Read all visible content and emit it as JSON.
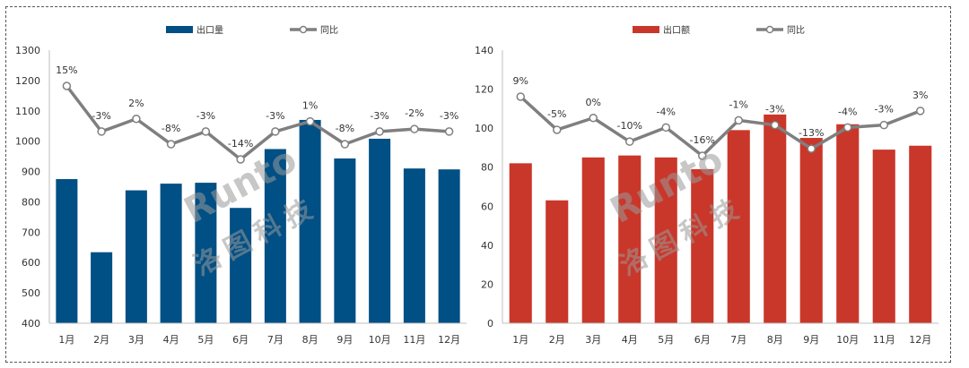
{
  "chart_data": [
    {
      "type": "bar",
      "categories": [
        "1月",
        "2月",
        "3月",
        "4月",
        "5月",
        "6月",
        "7月",
        "8月",
        "9月",
        "10月",
        "11月",
        "12月"
      ],
      "series": [
        {
          "name": "出口量",
          "type": "bar",
          "color": "#004f85",
          "values": [
            875,
            634,
            838,
            860,
            863,
            780,
            974,
            1070,
            943,
            1008,
            910,
            907
          ]
        }
      ],
      "line_series": {
        "name": "同比",
        "color": "#7f7f7f",
        "values": [
          15,
          -3,
          2,
          -8,
          -3,
          -14,
          -3,
          1,
          -8,
          -3,
          -2,
          -3
        ],
        "labels": [
          "15%",
          "-3%",
          "2%",
          "-8%",
          "-3%",
          "-14%",
          "-3%",
          "1%",
          "-8%",
          "-3%",
          "-2%",
          "-3%"
        ]
      },
      "ylim": [
        400,
        1300
      ],
      "yticks": [
        "400",
        "500",
        "600",
        "700",
        "800",
        "900",
        "1000",
        "1100",
        "1200",
        "1300"
      ],
      "legend": "top-center"
    },
    {
      "type": "bar",
      "categories": [
        "1月",
        "2月",
        "3月",
        "4月",
        "5月",
        "6月",
        "7月",
        "8月",
        "9月",
        "10月",
        "11月",
        "12月"
      ],
      "series": [
        {
          "name": "出口额",
          "type": "bar",
          "color": "#c9372a",
          "values": [
            82,
            63,
            85,
            86,
            85,
            79,
            99,
            107,
            95,
            102,
            89,
            91
          ]
        }
      ],
      "line_series": {
        "name": "同比",
        "color": "#7f7f7f",
        "values": [
          9,
          -5,
          0,
          -10,
          -4,
          -16,
          -1,
          -3,
          -13,
          -4,
          -3,
          3
        ],
        "labels": [
          "9%",
          "-5%",
          "0%",
          "-10%",
          "-4%",
          "-16%",
          "-1%",
          "-3%",
          "-13%",
          "-4%",
          "-3%",
          "3%"
        ]
      },
      "ylim": [
        0,
        140
      ],
      "yticks": [
        "0",
        "20",
        "40",
        "60",
        "80",
        "100",
        "120",
        "140"
      ],
      "legend": "top-center"
    }
  ],
  "watermark": {
    "latin": "Runto",
    "chinese": "洛图科技"
  }
}
